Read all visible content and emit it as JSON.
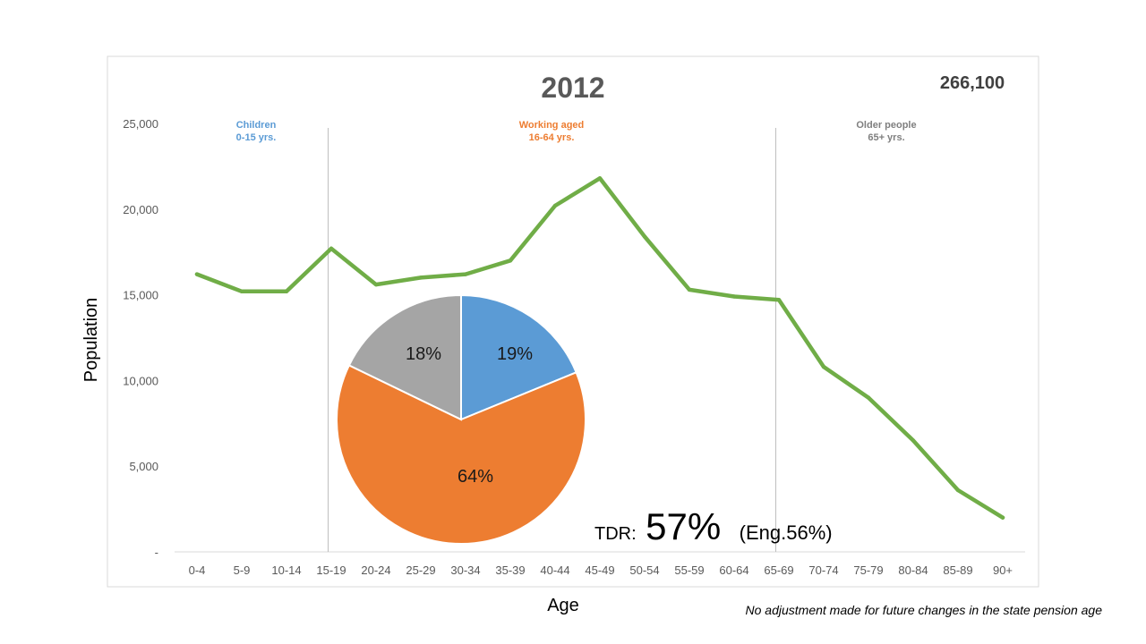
{
  "chart_data": [
    {
      "type": "line",
      "title": "2012",
      "total_label": "266,100",
      "xlabel": "Age",
      "ylabel": "Population",
      "categories": [
        "0-4",
        "5-9",
        "10-14",
        "15-19",
        "20-24",
        "25-29",
        "30-34",
        "35-39",
        "40-44",
        "45-49",
        "50-54",
        "55-59",
        "60-64",
        "65-69",
        "70-74",
        "75-79",
        "80-84",
        "85-89",
        "90+"
      ],
      "series": [
        {
          "values": [
            16200,
            15200,
            15200,
            17700,
            15600,
            16000,
            16200,
            17000,
            20200,
            21800,
            18400,
            15300,
            14900,
            14700,
            10800,
            9000,
            6500,
            3600,
            2000
          ],
          "color": "#70AD47"
        }
      ],
      "ylim": [
        0,
        25000
      ],
      "yticks": [
        0,
        5000,
        10000,
        15000,
        20000,
        25000
      ],
      "ytick_labels": [
        "-",
        "5,000",
        "10,000",
        "15,000",
        "20,000",
        "25,000"
      ],
      "grid": false,
      "segments": [
        {
          "line1": "Children",
          "line2": "0-15 yrs.",
          "color": "#5B9BD5",
          "boundary_after": "10-14"
        },
        {
          "line1": "Working aged",
          "line2": "16-64 yrs.",
          "color": "#ED7D31",
          "boundary_after": "60-64"
        },
        {
          "line1": "Older people",
          "line2": "65+ yrs.",
          "color": "#7F7F7F"
        }
      ]
    },
    {
      "type": "pie",
      "slices": [
        {
          "value": 19,
          "label": "19%",
          "color": "#5B9BD5"
        },
        {
          "value": 64,
          "label": "64%",
          "color": "#ED7D31"
        },
        {
          "value": 18,
          "label": "18%",
          "color": "#A5A5A5"
        }
      ]
    }
  ],
  "tdr": {
    "prefix": "TDR:",
    "value": "57%",
    "compare": "(Eng.56%)"
  },
  "footnote": "No adjustment made for future changes in the state pension age"
}
